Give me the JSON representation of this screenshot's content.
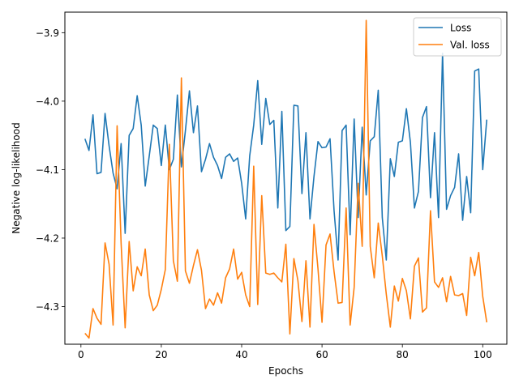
{
  "chart_data": {
    "type": "line",
    "title": "",
    "xlabel": "Epochs",
    "ylabel": "Negative log-likelihood",
    "xlim": [
      -4,
      106
    ],
    "ylim": [
      -4.355,
      -3.87
    ],
    "xticks": [
      0,
      20,
      40,
      60,
      80,
      100
    ],
    "yticks": [
      -4.3,
      -4.2,
      -4.1,
      -4.0,
      -3.9
    ],
    "xtick_labels": [
      "0",
      "20",
      "40",
      "60",
      "80",
      "100"
    ],
    "ytick_labels": [
      "−4.3",
      "−4.2",
      "−4.1",
      "−4.0",
      "−3.9"
    ],
    "grid": false,
    "legend_position": "top-right",
    "x": [
      1,
      2,
      3,
      4,
      5,
      6,
      7,
      8,
      9,
      10,
      11,
      12,
      13,
      14,
      15,
      16,
      17,
      18,
      19,
      20,
      21,
      22,
      23,
      24,
      25,
      26,
      27,
      28,
      29,
      30,
      31,
      32,
      33,
      34,
      35,
      36,
      37,
      38,
      39,
      40,
      41,
      42,
      43,
      44,
      45,
      46,
      47,
      48,
      49,
      50,
      51,
      52,
      53,
      54,
      55,
      56,
      57,
      58,
      59,
      60,
      61,
      62,
      63,
      64,
      65,
      66,
      67,
      68,
      69,
      70,
      71,
      72,
      73,
      74,
      75,
      76,
      77,
      78,
      79,
      80,
      81,
      82,
      83,
      84,
      85,
      86,
      87,
      88,
      89,
      90,
      91,
      92,
      93,
      94,
      95,
      96,
      97,
      98,
      99,
      100,
      101
    ],
    "series": [
      {
        "name": "Loss",
        "color": "#1f77b4",
        "values": [
          -4.055,
          -4.072,
          -4.02,
          -4.106,
          -4.104,
          -4.018,
          -4.065,
          -4.105,
          -4.128,
          -4.062,
          -4.193,
          -4.05,
          -4.04,
          -3.992,
          -4.035,
          -4.124,
          -4.08,
          -4.035,
          -4.04,
          -4.094,
          -4.035,
          -4.1,
          -4.085,
          -3.991,
          -4.096,
          -4.043,
          -3.985,
          -4.046,
          -4.007,
          -4.103,
          -4.085,
          -4.062,
          -4.082,
          -4.094,
          -4.113,
          -4.082,
          -4.077,
          -4.088,
          -4.083,
          -4.12,
          -4.172,
          -4.08,
          -4.035,
          -3.97,
          -4.063,
          -3.996,
          -4.034,
          -4.028,
          -4.156,
          -4.015,
          -4.189,
          -4.183,
          -4.006,
          -4.007,
          -4.135,
          -4.046,
          -4.172,
          -4.11,
          -4.059,
          -4.068,
          -4.067,
          -4.055,
          -4.16,
          -4.232,
          -4.043,
          -4.035,
          -4.195,
          -4.026,
          -4.17,
          -4.038,
          -4.137,
          -4.058,
          -4.052,
          -3.984,
          -4.17,
          -4.232,
          -4.084,
          -4.11,
          -4.06,
          -4.058,
          -4.011,
          -4.06,
          -4.156,
          -4.132,
          -4.024,
          -4.008,
          -4.141,
          -4.046,
          -4.17,
          -3.93,
          -4.158,
          -4.138,
          -4.126,
          -4.077,
          -4.174,
          -4.11,
          -4.163,
          -3.956,
          -3.953,
          -4.1,
          -4.027
        ]
      },
      {
        "name": "Val. loss",
        "color": "#ff7f0e",
        "values": [
          -4.339,
          -4.346,
          -4.303,
          -4.317,
          -4.326,
          -4.207,
          -4.238,
          -4.327,
          -4.036,
          -4.208,
          -4.331,
          -4.205,
          -4.277,
          -4.242,
          -4.255,
          -4.216,
          -4.283,
          -4.306,
          -4.298,
          -4.275,
          -4.246,
          -4.063,
          -4.233,
          -4.263,
          -3.966,
          -4.248,
          -4.266,
          -4.24,
          -4.217,
          -4.247,
          -4.303,
          -4.289,
          -4.298,
          -4.28,
          -4.295,
          -4.258,
          -4.245,
          -4.216,
          -4.26,
          -4.25,
          -4.283,
          -4.3,
          -4.095,
          -4.297,
          -4.138,
          -4.251,
          -4.253,
          -4.251,
          -4.258,
          -4.264,
          -4.209,
          -4.34,
          -4.23,
          -4.262,
          -4.322,
          -4.233,
          -4.33,
          -4.18,
          -4.245,
          -4.323,
          -4.21,
          -4.194,
          -4.249,
          -4.295,
          -4.294,
          -4.156,
          -4.327,
          -4.272,
          -4.12,
          -4.212,
          -3.882,
          -4.212,
          -4.258,
          -4.178,
          -4.226,
          -4.282,
          -4.33,
          -4.27,
          -4.292,
          -4.259,
          -4.277,
          -4.318,
          -4.241,
          -4.229,
          -4.308,
          -4.302,
          -4.16,
          -4.264,
          -4.272,
          -4.258,
          -4.293,
          -4.256,
          -4.283,
          -4.284,
          -4.281,
          -4.313,
          -4.228,
          -4.255,
          -4.221,
          -4.285,
          -4.323
        ]
      }
    ]
  }
}
